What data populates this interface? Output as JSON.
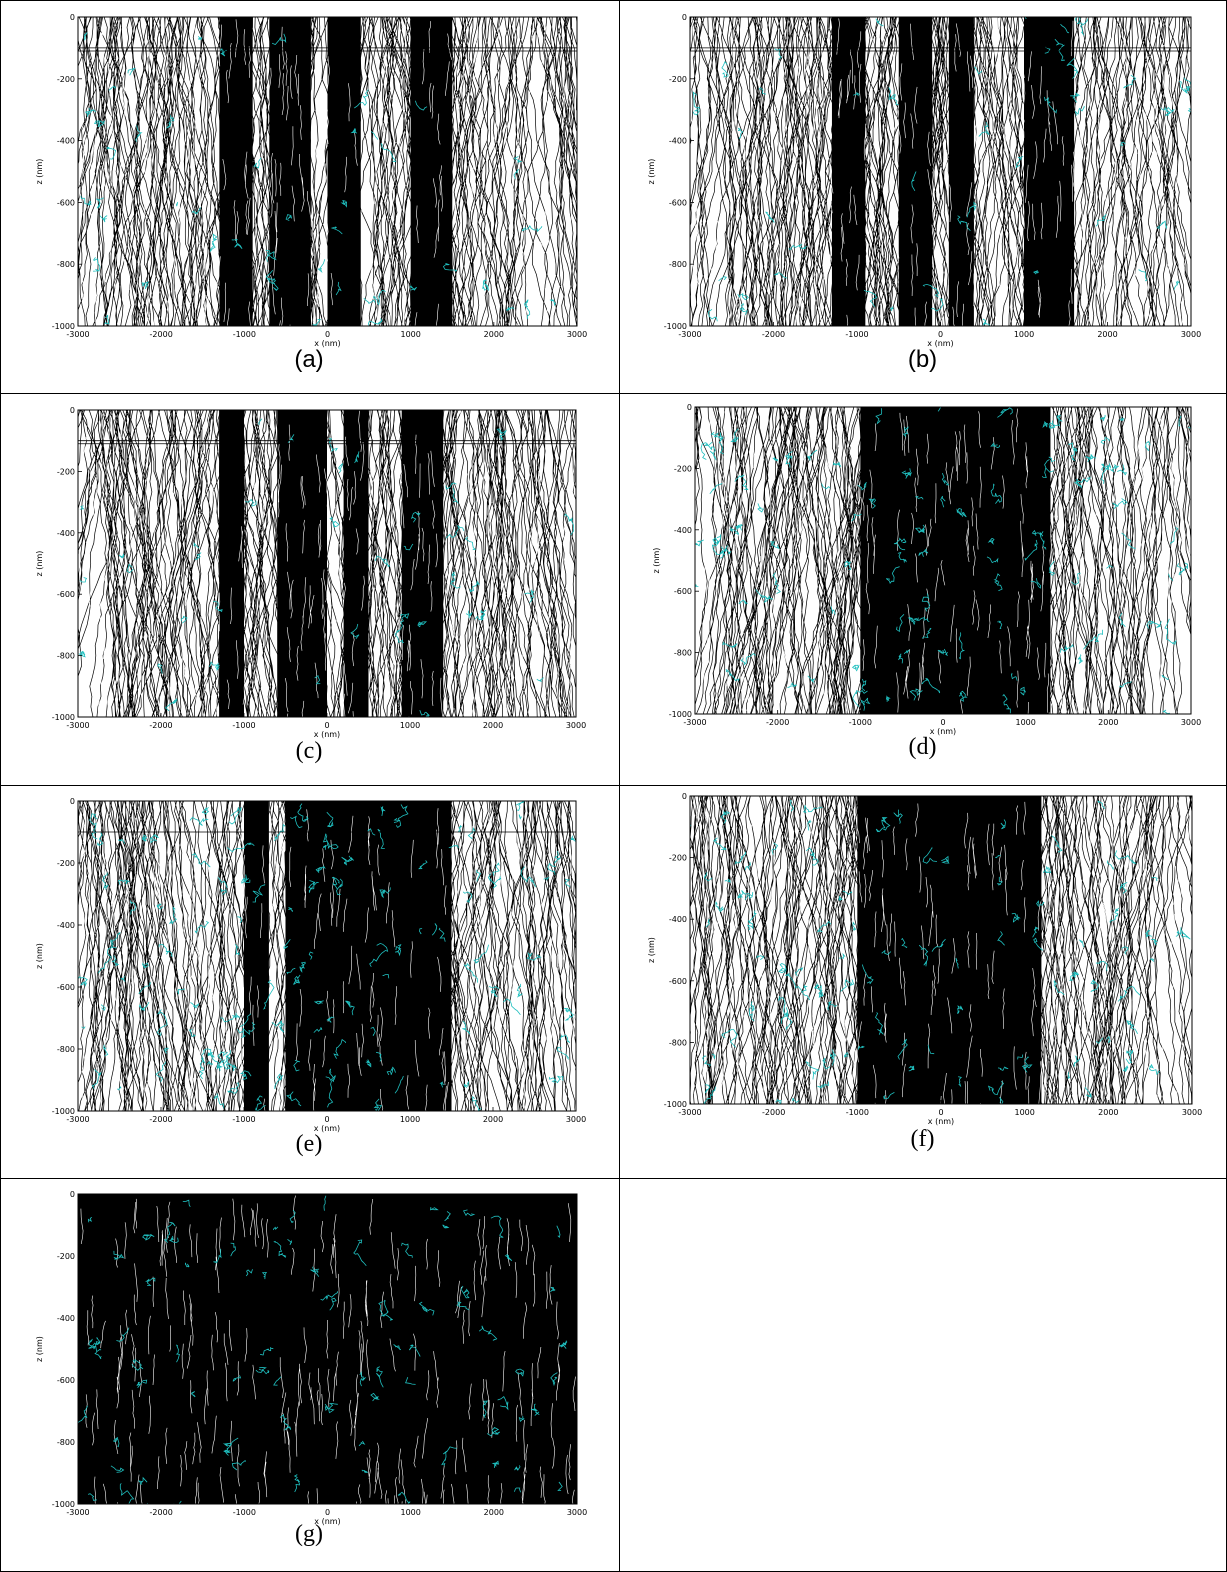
{
  "colors": {
    "track": "#000000",
    "highlight": "#1fbfbf",
    "background": "#ffffff"
  },
  "chart_data": [
    {
      "type": "line",
      "label": "(a)",
      "xlabel": "x (nm)",
      "ylabel": "z (nm)",
      "xlim": [
        -3000,
        3000
      ],
      "ylim": [
        -1000,
        0
      ],
      "xticks": [
        -3000,
        -2000,
        -1000,
        0,
        1000,
        2000,
        3000
      ],
      "yticks": [
        0,
        -200,
        -400,
        -600,
        -800,
        -1000
      ],
      "reference_lines_z": [
        -100,
        -110
      ],
      "dense_bands_x": [
        [
          -1300,
          -900
        ],
        [
          -700,
          -200
        ],
        [
          0,
          400
        ],
        [
          1000,
          1500
        ]
      ],
      "highlight_density": 0.12
    },
    {
      "type": "line",
      "label": "(b)",
      "xlabel": "x (nm)",
      "ylabel": "z (nm)",
      "xlim": [
        -3000,
        3000
      ],
      "ylim": [
        -1000,
        0
      ],
      "xticks": [
        -3000,
        -2000,
        -1000,
        0,
        1000,
        2000,
        3000
      ],
      "yticks": [
        0,
        -200,
        -400,
        -600,
        -800,
        -1000
      ],
      "reference_lines_z": [
        -100,
        -110
      ],
      "dense_bands_x": [
        [
          -1300,
          -900
        ],
        [
          -500,
          -100
        ],
        [
          100,
          400
        ],
        [
          1000,
          1600
        ]
      ],
      "highlight_density": 0.12
    },
    {
      "type": "line",
      "label": "(c)",
      "xlabel": "x (nm)",
      "ylabel": "z (nm)",
      "xlim": [
        -3000,
        3000
      ],
      "ylim": [
        -1000,
        0
      ],
      "xticks": [
        -3000,
        -2000,
        -1000,
        0,
        1000,
        2000,
        3000
      ],
      "yticks": [
        0,
        -200,
        -400,
        -600,
        -800,
        -1000
      ],
      "reference_lines_z": [
        -100,
        -110
      ],
      "dense_bands_x": [
        [
          -1300,
          -1000
        ],
        [
          -600,
          0
        ],
        [
          200,
          500
        ],
        [
          900,
          1400
        ]
      ],
      "highlight_density": 0.1
    },
    {
      "type": "line",
      "label": "(d)",
      "xlabel": "x (nm)",
      "ylabel": "z (nm)",
      "xlim": [
        -3000,
        3000
      ],
      "ylim": [
        -1000,
        0
      ],
      "xticks": [
        -3000,
        -2000,
        -1000,
        0,
        1000,
        2000,
        3000
      ],
      "yticks": [
        0,
        -200,
        -400,
        -600,
        -800,
        -1000
      ],
      "reference_lines_z": [],
      "dense_bands_x": [
        [
          -1000,
          1300
        ]
      ],
      "highlight_density": 0.3
    },
    {
      "type": "line",
      "label": "(e)",
      "xlabel": "x (nm)",
      "ylabel": "z (nm)",
      "xlim": [
        -3000,
        3000
      ],
      "ylim": [
        -1000,
        0
      ],
      "xticks": [
        -3000,
        -2000,
        -1000,
        0,
        1000,
        2000,
        3000
      ],
      "yticks": [
        0,
        -200,
        -400,
        -600,
        -800,
        -1000
      ],
      "reference_lines_z": [
        -100
      ],
      "dense_bands_x": [
        [
          -1000,
          -700
        ],
        [
          -500,
          1500
        ]
      ],
      "highlight_density": 0.35
    },
    {
      "type": "line",
      "label": "(f)",
      "xlabel": "x (nm)",
      "ylabel": "z (nm)",
      "xlim": [
        -3000,
        3000
      ],
      "ylim": [
        -1000,
        0
      ],
      "xticks": [
        -3000,
        -2000,
        -1000,
        0,
        1000,
        2000,
        3000
      ],
      "yticks": [
        0,
        -200,
        -400,
        -600,
        -800,
        -1000
      ],
      "reference_lines_z": [],
      "dense_bands_x": [
        [
          -1000,
          1200
        ]
      ],
      "highlight_density": 0.28
    },
    {
      "type": "line",
      "label": "(g)",
      "xlabel": "x (nm)",
      "ylabel": "z (nm)",
      "xlim": [
        -3000,
        3000
      ],
      "ylim": [
        -1000,
        0
      ],
      "xticks": [
        -3000,
        -2000,
        -1000,
        0,
        1000,
        2000,
        3000
      ],
      "yticks": [
        0,
        -200,
        -400,
        -600,
        -800,
        -1000
      ],
      "reference_lines_z": [],
      "dense_bands_x": [
        [
          -3000,
          3000
        ]
      ],
      "highlight_density": 0.22
    }
  ]
}
